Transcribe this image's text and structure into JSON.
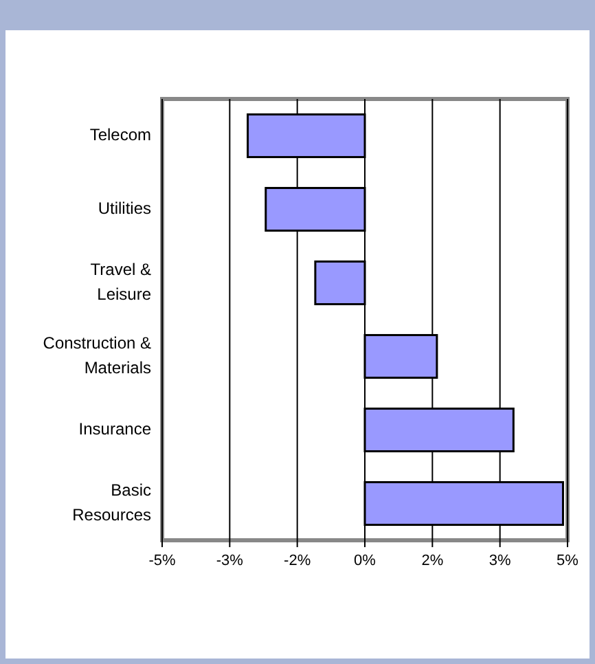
{
  "chart_data": {
    "type": "bar",
    "orientation": "horizontal",
    "categories": [
      "Telecom",
      "Utilities",
      "Travel & Leisure",
      "Construction & Materials",
      "Insurance",
      "Basic Resources"
    ],
    "values": [
      -2.6,
      -2.2,
      -1.1,
      1.6,
      3.3,
      4.4
    ],
    "color": "#9999ff",
    "xlim": [
      -4.5,
      4.5
    ],
    "xticks": [
      {
        "value": -4.5,
        "label": "-5%"
      },
      {
        "value": -3,
        "label": "-3%"
      },
      {
        "value": -1.5,
        "label": "-2%"
      },
      {
        "value": 0,
        "label": "0%"
      },
      {
        "value": 1.5,
        "label": "2%"
      },
      {
        "value": 3,
        "label": "3%"
      },
      {
        "value": 4.5,
        "label": "5%"
      }
    ],
    "grid": "x"
  }
}
